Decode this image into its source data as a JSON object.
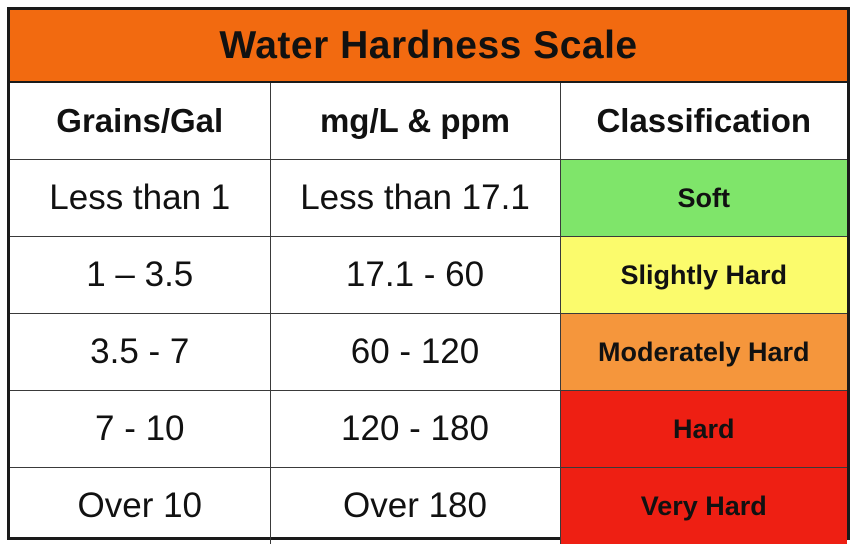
{
  "title": "Water Hardness Scale",
  "colors": {
    "title_bar": "#f26a10",
    "soft": "#7fe56a",
    "slightly_hard": "#fbfb6c",
    "moderately_hard": "#f5963c",
    "hard": "#ee1f13",
    "very_hard": "#ee1f13"
  },
  "headers": {
    "grains": "Grains/Gal",
    "mgl": "mg/L & ppm",
    "classification": "Classification"
  },
  "rows": [
    {
      "grains": "Less than 1",
      "mgl": "Less than 17.1",
      "classification": "Soft"
    },
    {
      "grains": "1 – 3.5",
      "mgl": "17.1 - 60",
      "classification": "Slightly Hard"
    },
    {
      "grains": "3.5 - 7",
      "mgl": "60 - 120",
      "classification": "Moderately Hard"
    },
    {
      "grains": "7 - 10",
      "mgl": "120 - 180",
      "classification": "Hard"
    },
    {
      "grains": "Over 10",
      "mgl": "Over 180",
      "classification": "Very Hard"
    }
  ]
}
